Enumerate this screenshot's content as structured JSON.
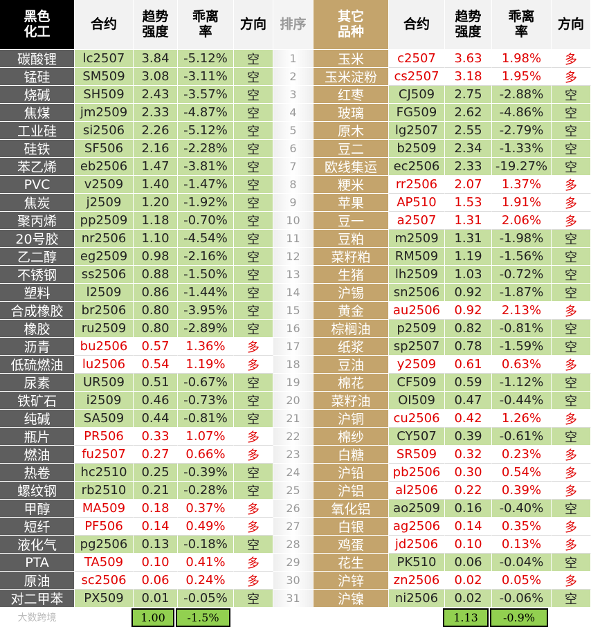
{
  "left": {
    "header": [
      "黑色化工",
      "合约",
      "趋势强度",
      "乖离率",
      "方向"
    ],
    "rows": [
      [
        "碳酸锂",
        "lc2507",
        "3.84",
        "-5.12%",
        "空"
      ],
      [
        "锰硅",
        "SM509",
        "3.08",
        "-3.11%",
        "空"
      ],
      [
        "烧碱",
        "SH509",
        "2.43",
        "-3.57%",
        "空"
      ],
      [
        "焦煤",
        "jm2509",
        "2.33",
        "-4.87%",
        "空"
      ],
      [
        "工业硅",
        "si2506",
        "2.26",
        "-5.12%",
        "空"
      ],
      [
        "硅铁",
        "SF506",
        "2.16",
        "-2.28%",
        "空"
      ],
      [
        "苯乙烯",
        "eb2506",
        "1.47",
        "-3.81%",
        "空"
      ],
      [
        "PVC",
        "v2509",
        "1.40",
        "-1.47%",
        "空"
      ],
      [
        "焦炭",
        "j2509",
        "1.20",
        "-1.92%",
        "空"
      ],
      [
        "聚丙烯",
        "pp2509",
        "1.18",
        "-0.70%",
        "空"
      ],
      [
        "20号胶",
        "nr2506",
        "1.10",
        "-4.54%",
        "空"
      ],
      [
        "乙二醇",
        "eg2509",
        "0.98",
        "-2.16%",
        "空"
      ],
      [
        "不锈钢",
        "ss2506",
        "0.88",
        "-1.50%",
        "空"
      ],
      [
        "塑料",
        "l2509",
        "0.86",
        "-1.44%",
        "空"
      ],
      [
        "合成橡胶",
        "br2506",
        "0.80",
        "-3.95%",
        "空"
      ],
      [
        "橡胶",
        "ru2509",
        "0.80",
        "-2.89%",
        "空"
      ],
      [
        "沥青",
        "bu2506",
        "0.57",
        "1.36%",
        "多"
      ],
      [
        "低硫燃油",
        "lu2506",
        "0.54",
        "1.19%",
        "多"
      ],
      [
        "尿素",
        "UR509",
        "0.51",
        "-0.67%",
        "空"
      ],
      [
        "铁矿石",
        "i2509",
        "0.46",
        "-0.73%",
        "空"
      ],
      [
        "纯碱",
        "SA509",
        "0.44",
        "-0.81%",
        "空"
      ],
      [
        "瓶片",
        "PR506",
        "0.33",
        "1.07%",
        "多"
      ],
      [
        "燃油",
        "fu2507",
        "0.27",
        "0.66%",
        "多"
      ],
      [
        "热卷",
        "hc2510",
        "0.25",
        "-0.39%",
        "空"
      ],
      [
        "螺纹钢",
        "rb2510",
        "0.21",
        "-0.28%",
        "空"
      ],
      [
        "甲醇",
        "MA509",
        "0.18",
        "0.37%",
        "多"
      ],
      [
        "短纤",
        "PF506",
        "0.14",
        "0.49%",
        "多"
      ],
      [
        "液化气",
        "pg2506",
        "0.13",
        "-0.18%",
        "空"
      ],
      [
        "PTA",
        "TA509",
        "0.10",
        "0.41%",
        "多"
      ],
      [
        "原油",
        "sc2506",
        "0.06",
        "0.24%",
        "多"
      ],
      [
        "对二甲苯",
        "PX509",
        "0.01",
        "-0.05%",
        "空"
      ]
    ],
    "footer": [
      "1.00",
      "-1.5%"
    ]
  },
  "rank": {
    "header": "排序",
    "values": [
      "1",
      "2",
      "3",
      "4",
      "5",
      "6",
      "7",
      "8",
      "9",
      "10",
      "11",
      "12",
      "13",
      "14",
      "15",
      "16",
      "17",
      "18",
      "19",
      "20",
      "21",
      "22",
      "23",
      "24",
      "25",
      "26",
      "27",
      "28",
      "29",
      "30",
      "31"
    ]
  },
  "right": {
    "header": [
      "其它品种",
      "合约",
      "趋势强度",
      "乖离率",
      "方向"
    ],
    "rows": [
      [
        "玉米",
        "c2507",
        "3.63",
        "1.98%",
        "多"
      ],
      [
        "玉米淀粉",
        "cs2507",
        "3.18",
        "1.95%",
        "多"
      ],
      [
        "红枣",
        "CJ509",
        "2.75",
        "-2.88%",
        "空"
      ],
      [
        "玻璃",
        "FG509",
        "2.62",
        "-4.86%",
        "空"
      ],
      [
        "原木",
        "lg2507",
        "2.55",
        "-2.79%",
        "空"
      ],
      [
        "豆二",
        "b2509",
        "2.34",
        "-1.33%",
        "空"
      ],
      [
        "欧线集运",
        "ec2506",
        "2.33",
        "-19.27%",
        "空"
      ],
      [
        "粳米",
        "rr2506",
        "2.07",
        "1.37%",
        "多"
      ],
      [
        "苹果",
        "AP510",
        "1.53",
        "1.91%",
        "多"
      ],
      [
        "豆一",
        "a2507",
        "1.31",
        "2.06%",
        "多"
      ],
      [
        "豆粕",
        "m2509",
        "1.31",
        "-1.98%",
        "空"
      ],
      [
        "菜籽粕",
        "RM509",
        "1.19",
        "-1.56%",
        "空"
      ],
      [
        "生猪",
        "lh2509",
        "1.03",
        "-0.72%",
        "空"
      ],
      [
        "沪锡",
        "sn2506",
        "0.92",
        "-1.87%",
        "空"
      ],
      [
        "黄金",
        "au2506",
        "0.92",
        "2.13%",
        "多"
      ],
      [
        "棕榈油",
        "p2509",
        "0.82",
        "-0.81%",
        "空"
      ],
      [
        "纸浆",
        "sp2507",
        "0.78",
        "-1.59%",
        "空"
      ],
      [
        "豆油",
        "y2509",
        "0.61",
        "0.63%",
        "多"
      ],
      [
        "棉花",
        "CF509",
        "0.59",
        "-1.12%",
        "空"
      ],
      [
        "菜籽油",
        "OI509",
        "0.47",
        "-0.44%",
        "空"
      ],
      [
        "沪铜",
        "cu2506",
        "0.42",
        "1.26%",
        "多"
      ],
      [
        "棉纱",
        "CY507",
        "0.39",
        "-0.61%",
        "空"
      ],
      [
        "白糖",
        "SR509",
        "0.32",
        "0.23%",
        "多"
      ],
      [
        "沪铅",
        "pb2506",
        "0.30",
        "0.54%",
        "多"
      ],
      [
        "沪铝",
        "al2506",
        "0.22",
        "0.39%",
        "多"
      ],
      [
        "氧化铝",
        "ao2509",
        "0.16",
        "-0.40%",
        "空"
      ],
      [
        "白银",
        "ag2506",
        "0.14",
        "0.35%",
        "多"
      ],
      [
        "鸡蛋",
        "jd2506",
        "0.10",
        "0.13%",
        "多"
      ],
      [
        "花生",
        "PK510",
        "0.06",
        "-0.04%",
        "空"
      ],
      [
        "沪锌",
        "zn2506",
        "0.02",
        "0.05%",
        "多"
      ],
      [
        "沪镍",
        "ni2506",
        "0.02",
        "-0.06%",
        "空"
      ]
    ],
    "footer": [
      "1.13",
      "-0.9%"
    ]
  },
  "logo": "大数跨境"
}
